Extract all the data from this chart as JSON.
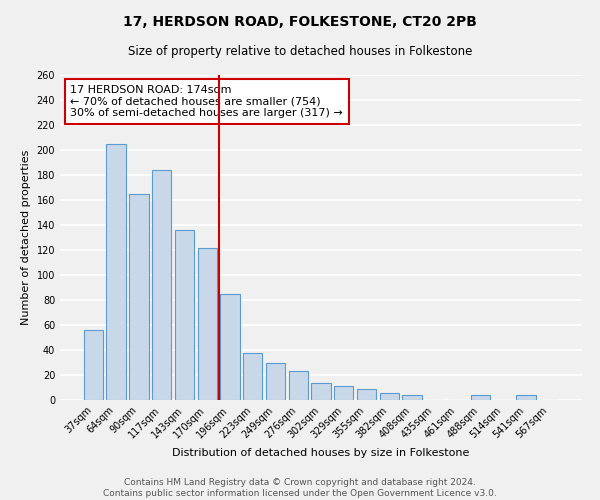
{
  "title": "17, HERDSON ROAD, FOLKESTONE, CT20 2PB",
  "subtitle": "Size of property relative to detached houses in Folkestone",
  "xlabel": "Distribution of detached houses by size in Folkestone",
  "ylabel": "Number of detached properties",
  "categories": [
    "37sqm",
    "64sqm",
    "90sqm",
    "117sqm",
    "143sqm",
    "170sqm",
    "196sqm",
    "223sqm",
    "249sqm",
    "276sqm",
    "302sqm",
    "329sqm",
    "355sqm",
    "382sqm",
    "408sqm",
    "435sqm",
    "461sqm",
    "488sqm",
    "514sqm",
    "541sqm",
    "567sqm"
  ],
  "values": [
    56,
    205,
    165,
    184,
    136,
    122,
    85,
    38,
    30,
    23,
    14,
    11,
    9,
    6,
    4,
    0,
    0,
    4,
    0,
    4,
    0
  ],
  "bar_color": "#c8d8e8",
  "bar_edge_color": "#5b9bd5",
  "vline_x_index": 5,
  "vline_color": "#cc0000",
  "annotation_line1": "17 HERDSON ROAD: 174sqm",
  "annotation_line2": "← 70% of detached houses are smaller (754)",
  "annotation_line3": "30% of semi-detached houses are larger (317) →",
  "annotation_box_color": "white",
  "annotation_box_edge_color": "#cc0000",
  "ylim": [
    0,
    260
  ],
  "yticks": [
    0,
    20,
    40,
    60,
    80,
    100,
    120,
    140,
    160,
    180,
    200,
    220,
    240,
    260
  ],
  "footer_text": "Contains HM Land Registry data © Crown copyright and database right 2024.\nContains public sector information licensed under the Open Government Licence v3.0.",
  "bg_color": "#f0f0f0",
  "grid_color": "white",
  "title_fontsize": 10,
  "subtitle_fontsize": 8.5,
  "axis_label_fontsize": 8,
  "tick_fontsize": 7,
  "annotation_fontsize": 8,
  "footer_fontsize": 6.5
}
